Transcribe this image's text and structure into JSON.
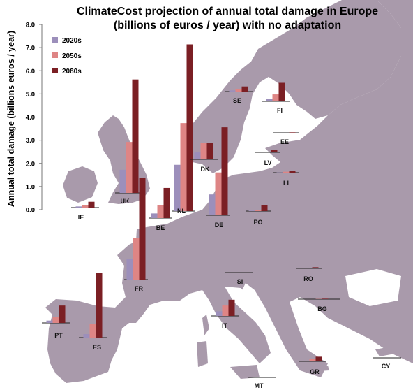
{
  "chart_data": {
    "type": "bar",
    "title": "ClimateCost projection of annual total damage in Europe",
    "subtitle": "(billions of euros / year) with no adaptation",
    "ylabel": "Annual total damage (billions euros / year)",
    "ylim": [
      0,
      8
    ],
    "yticks": [
      "0.0",
      "1.0",
      "2.0",
      "3.0",
      "4.0",
      "5.0",
      "6.0",
      "7.0",
      "8.0"
    ],
    "legend_position": "top-left",
    "colors": {
      "2020s": "#9c8fbb",
      "2050s": "#de8585",
      "2080s": "#7b1f24",
      "land": "#a99aab",
      "sea": "#ffffff"
    },
    "series": [
      {
        "name": "2020s"
      },
      {
        "name": "2050s"
      },
      {
        "name": "2080s"
      }
    ],
    "categories": [
      "IE",
      "UK",
      "BE",
      "NL",
      "FR",
      "DK",
      "DE",
      "SE",
      "FI",
      "EE",
      "LV",
      "LI",
      "PO",
      "PT",
      "ES",
      "IT",
      "SI",
      "RO",
      "BG",
      "GR",
      "MT",
      "CY"
    ],
    "values": {
      "IE": [
        0.05,
        0.1,
        0.25
      ],
      "UK": [
        1.0,
        2.2,
        4.9
      ],
      "BE": [
        0.2,
        0.55,
        1.3
      ],
      "NL": [
        2.0,
        3.8,
        7.2
      ],
      "FR": [
        0.9,
        1.8,
        4.4
      ],
      "DK": [
        0.3,
        0.7,
        0.7
      ],
      "DE": [
        0.9,
        1.85,
        3.8
      ],
      "SE": [
        0.05,
        0.1,
        0.22
      ],
      "FI": [
        0.1,
        0.3,
        0.8
      ],
      "EE": [
        0.0,
        0.0,
        0.02
      ],
      "LV": [
        0.01,
        0.03,
        0.1
      ],
      "LI": [
        0.01,
        0.04,
        0.08
      ],
      "PO": [
        0.02,
        0.05,
        0.25
      ],
      "PT": [
        0.1,
        0.25,
        0.75
      ],
      "ES": [
        0.15,
        0.6,
        2.8
      ],
      "IT": [
        0.2,
        0.45,
        0.7
      ],
      "SI": [
        0.0,
        0.0,
        0.0
      ],
      "RO": [
        0.01,
        0.03,
        0.05
      ],
      "BG": [
        0.0,
        0.01,
        0.02
      ],
      "GR": [
        0.02,
        0.1,
        0.2
      ],
      "MT": [
        0.0,
        0.0,
        0.0
      ],
      "CY": [
        0.0,
        0.0,
        0.0
      ]
    }
  }
}
